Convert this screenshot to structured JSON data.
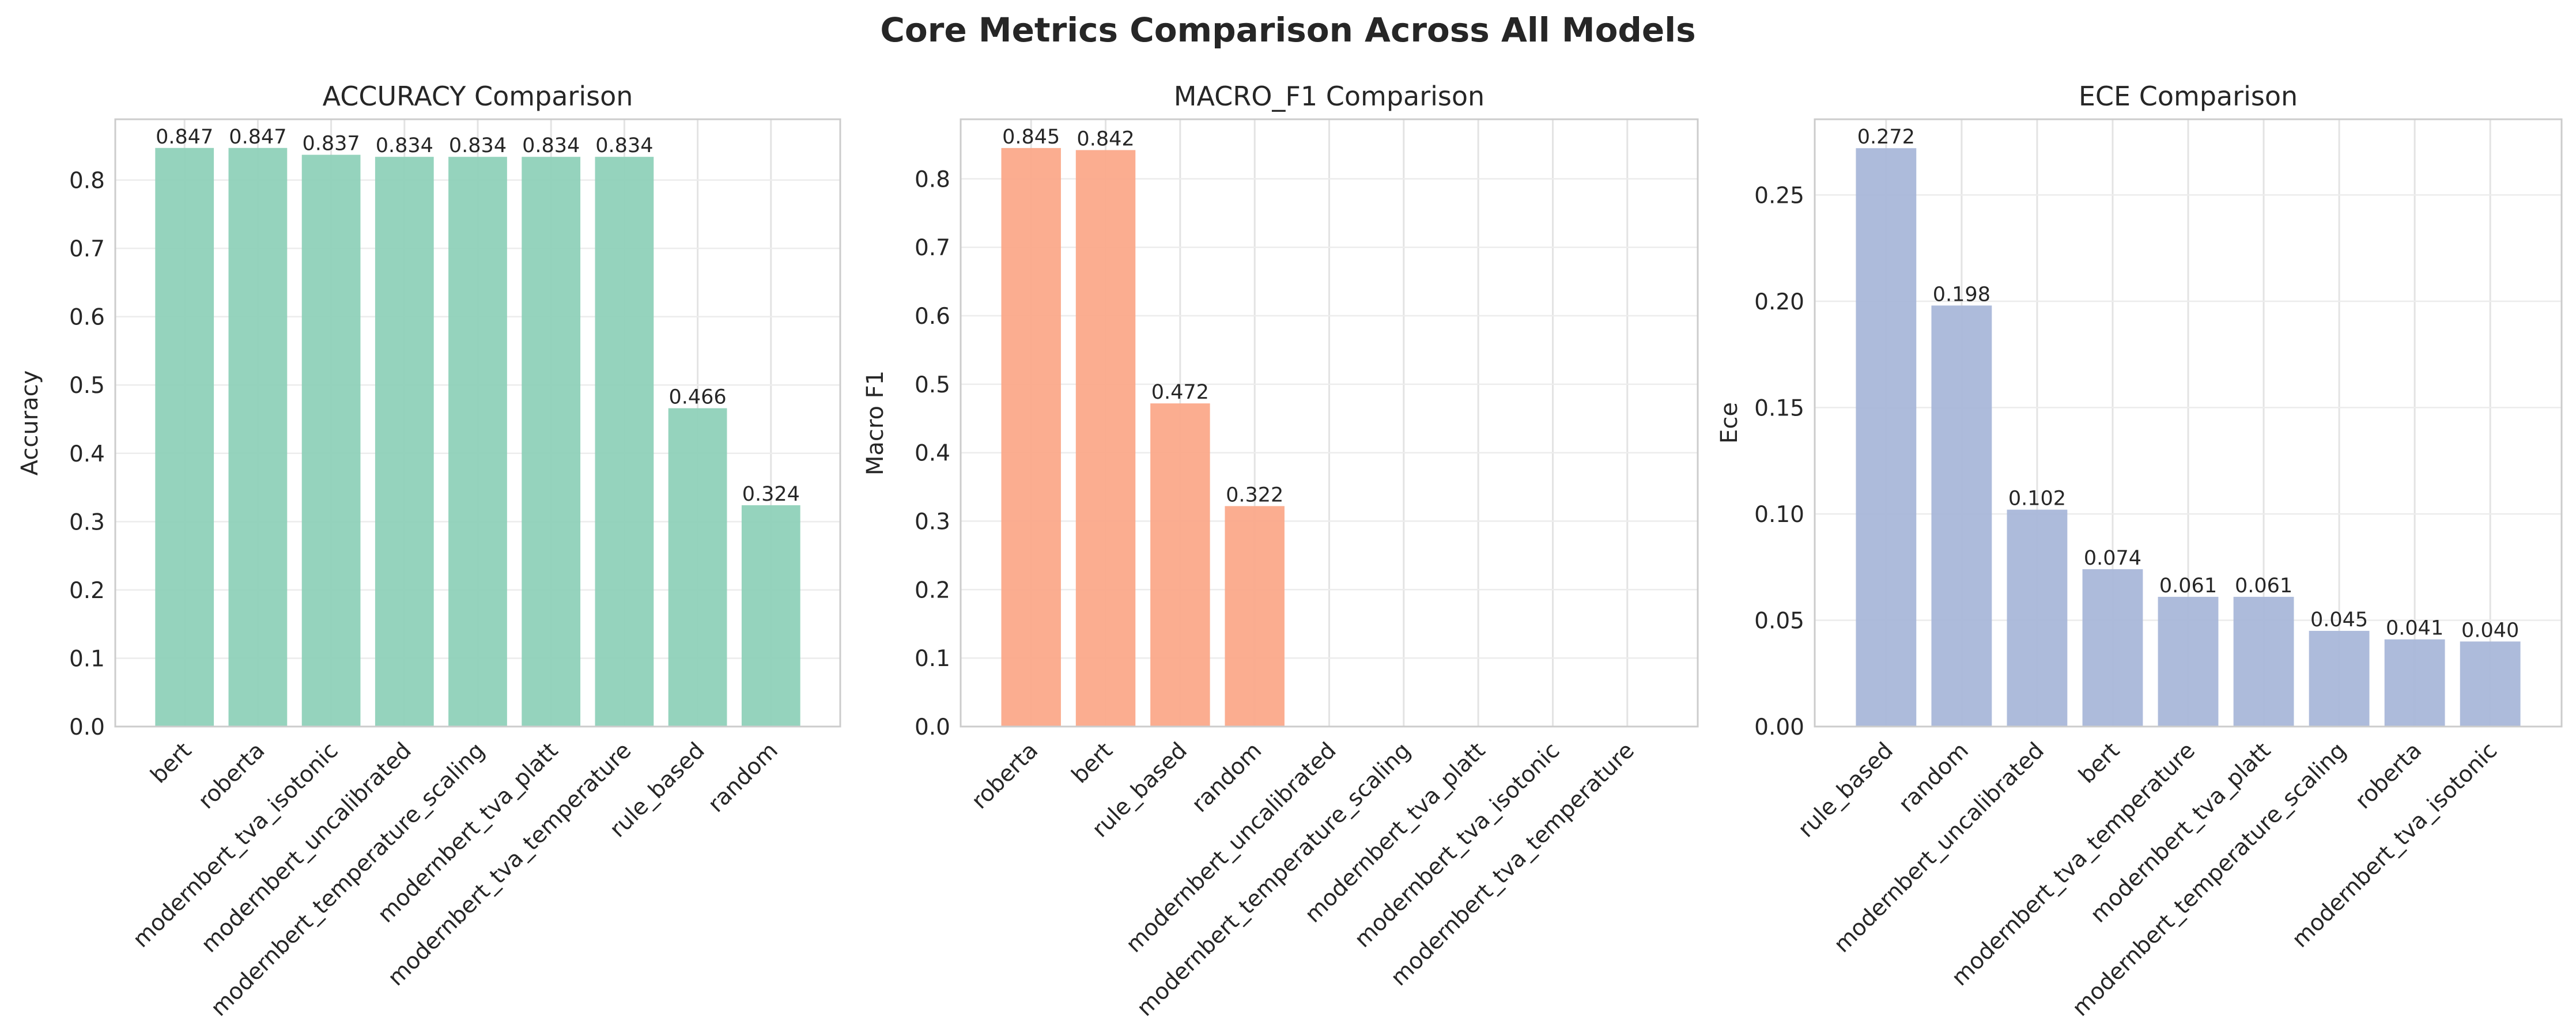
{
  "figure_title": "Core Metrics Comparison Across All Models",
  "chart_data": [
    {
      "type": "bar",
      "title": "ACCURACY Comparison",
      "xlabel": "",
      "ylabel": "Accuracy",
      "ylim": [
        0,
        0.889
      ],
      "yticks": [
        0.0,
        0.1,
        0.2,
        0.3,
        0.4,
        0.5,
        0.6,
        0.7,
        0.8
      ],
      "ytick_decimals": 1,
      "label_decimals": 3,
      "grid": true,
      "color": "#8fd1b9",
      "categories": [
        "bert",
        "roberta",
        "modernbert_tva_isotonic",
        "modernbert_uncalibrated",
        "modernbert_temperature_scaling",
        "modernbert_tva_platt",
        "modernbert_tva_temperature",
        "rule_based",
        "random"
      ],
      "values": [
        0.847,
        0.847,
        0.837,
        0.834,
        0.834,
        0.834,
        0.834,
        0.466,
        0.324
      ]
    },
    {
      "type": "bar",
      "title": "MACRO_F1 Comparison",
      "xlabel": "",
      "ylabel": "Macro F1",
      "ylim": [
        0,
        0.887
      ],
      "yticks": [
        0.0,
        0.1,
        0.2,
        0.3,
        0.4,
        0.5,
        0.6,
        0.7,
        0.8
      ],
      "ytick_decimals": 1,
      "label_decimals": 3,
      "grid": true,
      "color": "#fba98a",
      "categories": [
        "roberta",
        "bert",
        "rule_based",
        "random",
        "modernbert_uncalibrated",
        "modernbert_temperature_scaling",
        "modernbert_tva_platt",
        "modernbert_tva_isotonic",
        "modernbert_tva_temperature"
      ],
      "values": [
        0.845,
        0.842,
        0.472,
        0.322,
        null,
        null,
        null,
        null,
        null
      ]
    },
    {
      "type": "bar",
      "title": "ECE Comparison",
      "xlabel": "",
      "ylabel": "Ece",
      "ylim": [
        0,
        0.2856
      ],
      "yticks": [
        0.0,
        0.05,
        0.1,
        0.15,
        0.2,
        0.25
      ],
      "ytick_decimals": 2,
      "label_decimals": 3,
      "grid": true,
      "color": "#a9b7d9",
      "categories": [
        "rule_based",
        "random",
        "modernbert_uncalibrated",
        "bert",
        "modernbert_tva_temperature",
        "modernbert_tva_platt",
        "modernbert_temperature_scaling",
        "roberta",
        "modernbert_tva_isotonic"
      ],
      "values": [
        0.272,
        0.198,
        0.102,
        0.074,
        0.061,
        0.061,
        0.045,
        0.041,
        0.04
      ]
    }
  ]
}
